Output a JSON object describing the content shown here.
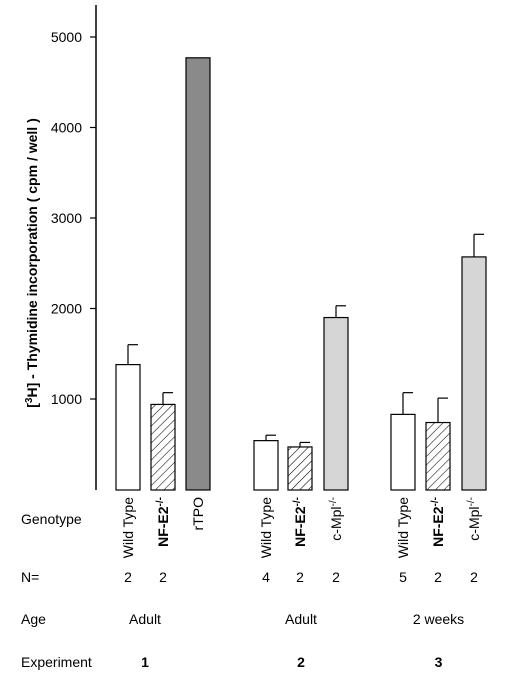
{
  "chart_data": {
    "type": "bar",
    "ylabel": "[3H] - Thymidine incorporation  ( cpm / well )",
    "ylabel_parts": {
      "bracket_open": "[",
      "superscript": "3",
      "rest": "H] - Thymidine incorporation  ( cpm / well )"
    },
    "yticks": [
      1000,
      2000,
      3000,
      4000,
      5000
    ],
    "ytick_labels": [
      "1000",
      "2000",
      "3000",
      "4000",
      "5000"
    ],
    "ylim": [
      0,
      5500
    ],
    "grid": false,
    "legend": "none",
    "row_labels": {
      "genotype": "Genotype",
      "n": "N=",
      "age": "Age",
      "experiment": "Experiment"
    },
    "groups": [
      {
        "experiment": "1",
        "age": "Adult",
        "bars": [
          {
            "label": "Wild Type",
            "base": "Wild Type",
            "sup": "",
            "bold": false,
            "value": 1380,
            "error": 220,
            "n": "2",
            "fill": "open"
          },
          {
            "label": "NF-E2-/-",
            "base": "NF-E2",
            "sup": "-/-",
            "bold": true,
            "value": 940,
            "error": 130,
            "n": "2",
            "fill": "hatched"
          },
          {
            "label": "rTPO",
            "base": "rTPO",
            "sup": "",
            "bold": false,
            "value": 4770,
            "error": 0,
            "n": "",
            "fill": "dark"
          }
        ]
      },
      {
        "experiment": "2",
        "age": "Adult",
        "bars": [
          {
            "label": "Wild Type",
            "base": "Wild Type",
            "sup": "",
            "bold": false,
            "value": 540,
            "error": 60,
            "n": "4",
            "fill": "open"
          },
          {
            "label": "NF-E2-/-",
            "base": "NF-E2",
            "sup": "-/-",
            "bold": true,
            "value": 470,
            "error": 50,
            "n": "2",
            "fill": "hatched"
          },
          {
            "label": "c-Mpl-/-",
            "base": "c-Mpl",
            "sup": "-/-",
            "bold": false,
            "value": 1900,
            "error": 130,
            "n": "2",
            "fill": "light"
          }
        ]
      },
      {
        "experiment": "3",
        "age": "2 weeks",
        "bars": [
          {
            "label": "Wild Type",
            "base": "Wild Type",
            "sup": "",
            "bold": false,
            "value": 830,
            "error": 240,
            "n": "5",
            "fill": "open"
          },
          {
            "label": "NF-E2-/-",
            "base": "NF-E2",
            "sup": "-/-",
            "bold": true,
            "value": 740,
            "error": 270,
            "n": "2",
            "fill": "hatched"
          },
          {
            "label": "c-Mpl-/-",
            "base": "c-Mpl",
            "sup": "-/-",
            "bold": false,
            "value": 2570,
            "error": 250,
            "n": "2",
            "fill": "light"
          }
        ]
      }
    ],
    "colors": {
      "open": "#ffffff",
      "dark": "#8a8a8a",
      "light": "#d6d6d6",
      "stroke": "#000000"
    }
  }
}
